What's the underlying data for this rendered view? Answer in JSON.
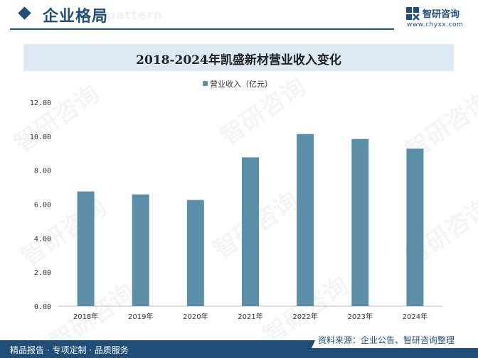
{
  "header": {
    "title": "企业格局",
    "ghost_text": "pattern",
    "brand_name": "智研咨询",
    "brand_url": "www.chyxx.com",
    "brand_color": "#1f4e79"
  },
  "watermark": "智研咨询",
  "footer": {
    "left_text": "精品报告 · 专项定制 · 品质服务",
    "source_text": "资料来源：企业公告、智研咨询整理"
  },
  "chart_data": {
    "type": "bar",
    "title": "2018-2024年凯盛新材营业收入变化",
    "categories": [
      "2018年",
      "2019年",
      "2020年",
      "2021年",
      "2022年",
      "2023年",
      "2024年"
    ],
    "series": [
      {
        "name": "营业收入（亿元）",
        "values": [
          6.75,
          6.58,
          6.25,
          8.76,
          10.13,
          9.84,
          9.27
        ],
        "color": "#5b8fa8"
      }
    ],
    "ylim": [
      0,
      12
    ],
    "yticks": [
      "0.00",
      "2.00",
      "4.00",
      "6.00",
      "8.00",
      "10.00",
      "12.00"
    ],
    "ytick_values": [
      0,
      2,
      4,
      6,
      8,
      10,
      12
    ],
    "legend_position": "top-center",
    "grid": false
  }
}
